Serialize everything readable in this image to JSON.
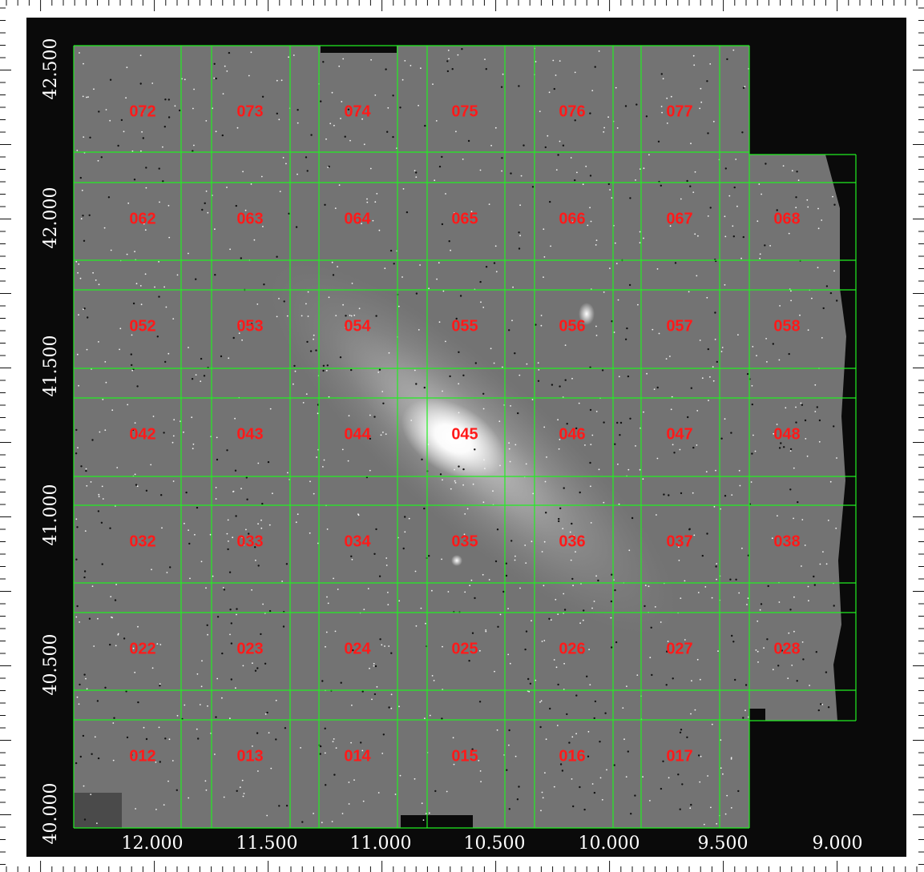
{
  "image": {
    "colors": {
      "frame_background": "#ffffff",
      "sky_background": "#0a0a0a",
      "galaxy_field": "#777777",
      "tile_border": "#22ee22",
      "tile_label": "#ff1a1a",
      "axis_text": "#ffffff",
      "tick_color": "#111111"
    }
  },
  "axes": {
    "x_ticks": [
      "12.000",
      "11.500",
      "11.000",
      "10.500",
      "10.000",
      "9.500",
      "9.000"
    ],
    "y_ticks": [
      "42.500",
      "42.000",
      "41.500",
      "41.000",
      "40.500",
      "40.000"
    ]
  },
  "tiles": [
    {
      "rows": [
        "072",
        "073",
        "074",
        "075",
        "076",
        "077"
      ]
    },
    {
      "rows": [
        "062",
        "063",
        "064",
        "065",
        "066",
        "067",
        "068"
      ]
    },
    {
      "rows": [
        "052",
        "053",
        "054",
        "055",
        "056",
        "057",
        "058"
      ]
    },
    {
      "rows": [
        "042",
        "043",
        "044",
        "045",
        "046",
        "047",
        "048"
      ]
    },
    {
      "rows": [
        "032",
        "033",
        "034",
        "035",
        "036",
        "037",
        "038"
      ]
    },
    {
      "rows": [
        "022",
        "023",
        "024",
        "025",
        "026",
        "027",
        "028"
      ]
    },
    {
      "rows": [
        "012",
        "013",
        "014",
        "015",
        "016",
        "017"
      ]
    }
  ]
}
